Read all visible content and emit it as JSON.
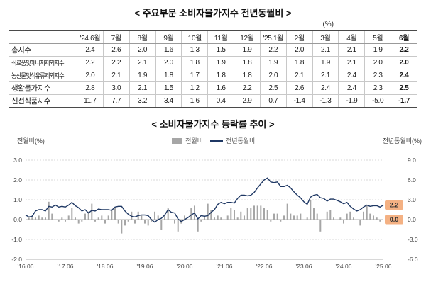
{
  "table_section": {
    "title": "< 주요부문 소비자물가지수 전년동월비 >",
    "unit": "(%)",
    "columns": [
      "'24.6월",
      "7월",
      "8월",
      "9월",
      "10월",
      "11월",
      "12월",
      "'25.1월",
      "2월",
      "3월",
      "4월",
      "5월",
      "6월"
    ],
    "rows": [
      {
        "label": "총지수",
        "values": [
          2.4,
          2.6,
          2.0,
          1.6,
          1.3,
          1.5,
          1.9,
          2.2,
          2.0,
          2.1,
          2.1,
          1.9,
          2.2
        ]
      },
      {
        "label": "식료품및에너지제외지수",
        "values": [
          2.2,
          2.2,
          2.1,
          2.0,
          1.8,
          1.9,
          1.8,
          1.9,
          1.8,
          1.9,
          2.1,
          2.0,
          2.0
        ]
      },
      {
        "label": "농산물및석유류제외지수",
        "values": [
          2.0,
          2.1,
          1.9,
          1.8,
          1.7,
          1.8,
          1.8,
          2.0,
          2.1,
          2.1,
          2.4,
          2.3,
          2.4
        ]
      },
      {
        "label": "생활물가지수",
        "values": [
          2.8,
          3.0,
          2.1,
          1.5,
          1.2,
          1.6,
          2.2,
          2.5,
          2.6,
          2.4,
          2.4,
          2.3,
          2.5
        ]
      },
      {
        "label": "신선식품지수",
        "values": [
          11.7,
          7.7,
          3.2,
          3.4,
          1.6,
          0.4,
          2.9,
          0.7,
          -1.4,
          -1.3,
          -1.9,
          -5.0,
          -1.7
        ]
      }
    ]
  },
  "chart_data": {
    "type": "bar+line",
    "title": "< 소비자물가지수 등락률 추이 >",
    "left_axis_label": "전월비(%)",
    "right_axis_label": "전년동월비(%)",
    "x_start": "2016-06",
    "x_end": "2025-06",
    "x_frequency": "monthly",
    "x_tick_labels": [
      "'16.06",
      "'17.06",
      "'18.06",
      "'19.06",
      "'20.06",
      "'21.06",
      "'22.06",
      "'23.06",
      "'24.06",
      "'25.06"
    ],
    "left_ylim": [
      -2.0,
      3.0
    ],
    "right_ylim": [
      -6.0,
      9.0
    ],
    "left_yticks": [
      3.0,
      2.0,
      1.0,
      0.0,
      -1.0,
      -2.0
    ],
    "right_yticks": [
      9.0,
      6.0,
      3.0,
      0.0,
      -3.0,
      -6.0
    ],
    "grid": "horizontal-dotted",
    "legend_position": "top-center",
    "series": [
      {
        "name": "전월비",
        "type": "bar",
        "axis": "left",
        "color": "#a6a6a6",
        "values": [
          0.0,
          0.1,
          0.1,
          0.1,
          0.2,
          0.1,
          0.1,
          0.9,
          0.3,
          0.0,
          -0.1,
          0.1,
          -0.1,
          0.2,
          0.6,
          0.1,
          -0.2,
          -0.1,
          0.3,
          0.4,
          0.8,
          -0.1,
          0.1,
          0.2,
          -0.2,
          0.2,
          0.5,
          0.6,
          -0.2,
          -0.7,
          -0.3,
          -0.1,
          0.4,
          -0.2,
          0.4,
          0.2,
          -0.2,
          -0.3,
          -0.1,
          0.4,
          0.2,
          -0.5,
          0.2,
          0.6,
          0.0,
          -0.2,
          -0.6,
          -0.2,
          0.2,
          0.0,
          0.6,
          0.7,
          -0.6,
          -0.1,
          0.2,
          0.8,
          0.5,
          0.1,
          0.2,
          0.1,
          0.0,
          0.2,
          0.6,
          0.5,
          0.1,
          0.4,
          0.2,
          0.6,
          0.6,
          0.7,
          0.7,
          0.7,
          0.6,
          0.5,
          -0.1,
          0.3,
          0.3,
          -0.1,
          0.2,
          0.8,
          0.3,
          0.2,
          0.2,
          0.3,
          0.0,
          0.1,
          1.0,
          0.6,
          0.3,
          -0.6,
          0.0,
          0.4,
          0.5,
          0.1,
          0.0,
          0.1,
          -0.2,
          0.3,
          0.4,
          0.1,
          0.0,
          -0.3,
          0.4,
          0.7,
          0.3,
          0.2,
          0.1,
          -0.1,
          0.0
        ]
      },
      {
        "name": "전년동월비",
        "type": "line",
        "axis": "right",
        "color": "#1f3864",
        "values": [
          0.7,
          0.4,
          0.5,
          1.3,
          1.5,
          1.5,
          1.3,
          2.0,
          1.9,
          2.2,
          1.9,
          2.0,
          1.9,
          2.2,
          2.6,
          2.1,
          1.8,
          1.3,
          1.5,
          1.0,
          1.4,
          1.3,
          1.6,
          1.5,
          1.5,
          1.5,
          1.4,
          1.9,
          2.0,
          2.0,
          1.3,
          0.8,
          0.5,
          0.4,
          0.6,
          0.7,
          0.7,
          0.6,
          0.0,
          -0.4,
          0.0,
          0.2,
          0.7,
          1.5,
          1.1,
          1.0,
          0.1,
          -0.3,
          0.0,
          0.3,
          0.7,
          1.0,
          0.1,
          0.6,
          0.5,
          0.6,
          1.1,
          1.5,
          2.3,
          2.6,
          2.4,
          2.6,
          2.6,
          2.5,
          3.2,
          3.7,
          3.7,
          3.6,
          3.7,
          4.1,
          4.8,
          5.4,
          6.0,
          6.3,
          5.7,
          5.6,
          5.7,
          5.0,
          5.0,
          5.2,
          4.8,
          4.2,
          3.7,
          3.3,
          2.7,
          2.3,
          3.4,
          3.7,
          3.8,
          3.3,
          3.2,
          2.8,
          3.1,
          3.1,
          2.9,
          2.7,
          2.4,
          2.6,
          2.0,
          1.6,
          1.3,
          1.5,
          1.9,
          2.2,
          2.0,
          2.1,
          2.1,
          1.9,
          2.2
        ]
      }
    ],
    "annotations": [
      {
        "text": "2.2",
        "series": "전년동월비",
        "bg": "#f4b183"
      },
      {
        "text": "0.0",
        "series": "전월비",
        "bg": "#f4b183"
      }
    ]
  }
}
